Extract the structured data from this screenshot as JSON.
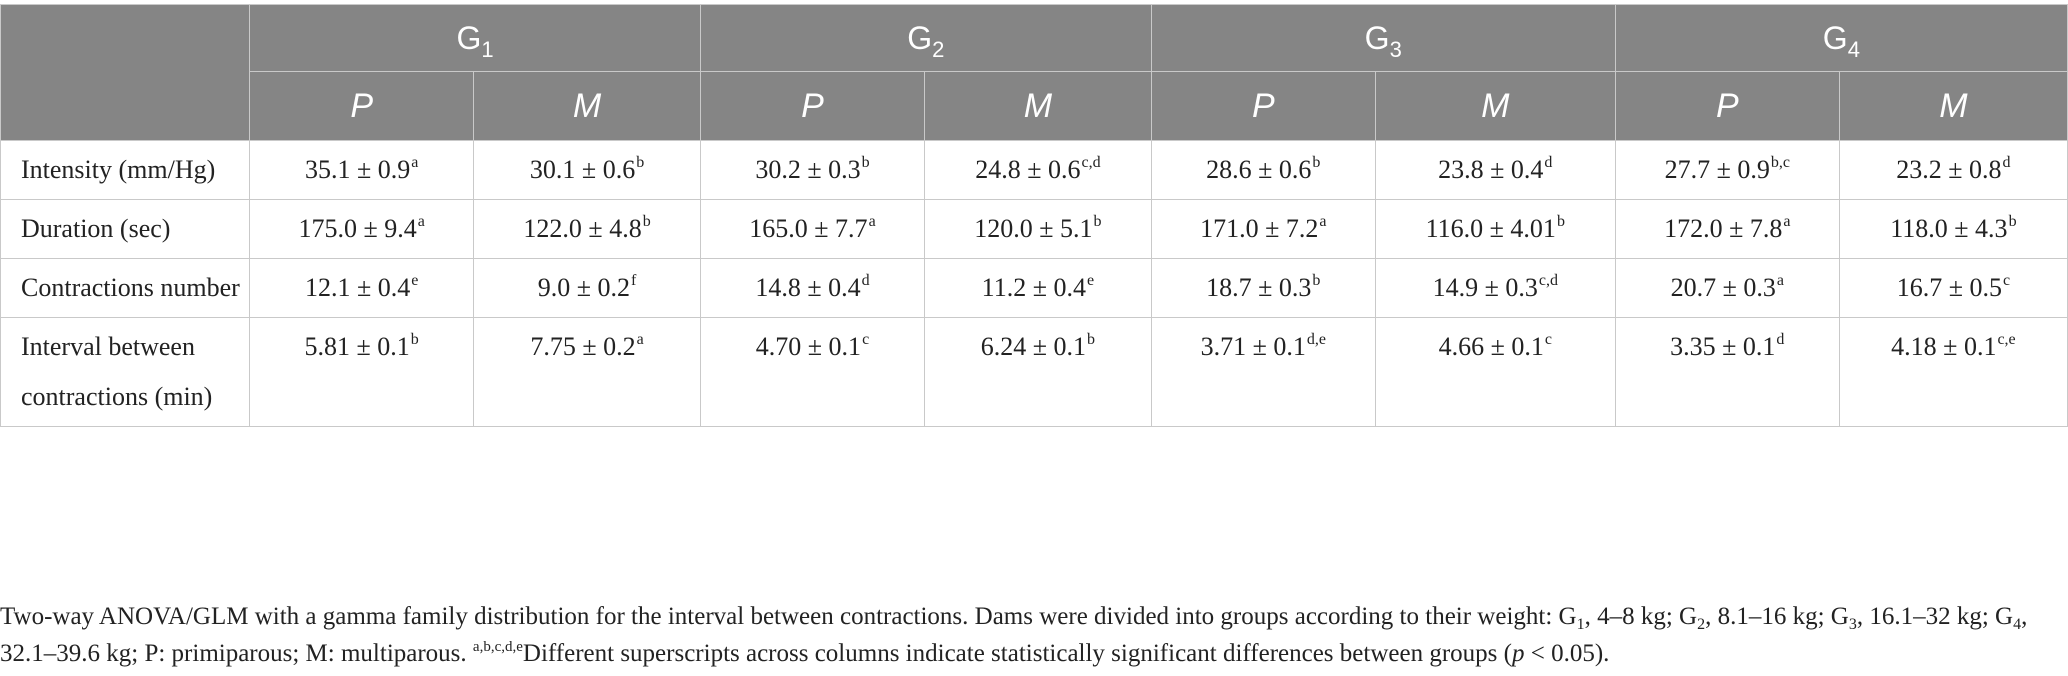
{
  "table": {
    "corner": "",
    "groups": [
      {
        "label": "G",
        "sub": "1"
      },
      {
        "label": "G",
        "sub": "2"
      },
      {
        "label": "G",
        "sub": "3"
      },
      {
        "label": "G",
        "sub": "4"
      }
    ],
    "subheaders": [
      "P",
      "M",
      "P",
      "M",
      "P",
      "M",
      "P",
      "M"
    ],
    "rows": [
      {
        "label": "Intensity (mm/Hg)",
        "cells": [
          {
            "value": "35.1 ± 0.9",
            "sup": "a"
          },
          {
            "value": "30.1 ± 0.6",
            "sup": "b"
          },
          {
            "value": "30.2 ± 0.3",
            "sup": "b"
          },
          {
            "value": "24.8 ± 0.6",
            "sup": "c,d"
          },
          {
            "value": "28.6 ± 0.6",
            "sup": "b"
          },
          {
            "value": "23.8 ± 0.4",
            "sup": "d"
          },
          {
            "value": "27.7 ± 0.9",
            "sup": "b,c"
          },
          {
            "value": "23.2 ± 0.8",
            "sup": "d"
          }
        ]
      },
      {
        "label": "Duration (sec)",
        "cells": [
          {
            "value": "175.0 ± 9.4",
            "sup": "a"
          },
          {
            "value": "122.0 ± 4.8",
            "sup": "b"
          },
          {
            "value": "165.0 ± 7.7",
            "sup": "a"
          },
          {
            "value": "120.0 ± 5.1",
            "sup": "b"
          },
          {
            "value": "171.0 ± 7.2",
            "sup": "a"
          },
          {
            "value": "116.0 ± 4.01",
            "sup": "b"
          },
          {
            "value": "172.0 ± 7.8",
            "sup": "a"
          },
          {
            "value": "118.0 ± 4.3",
            "sup": "b"
          }
        ]
      },
      {
        "label": "Contractions number",
        "cells": [
          {
            "value": "12.1 ± 0.4",
            "sup": "e"
          },
          {
            "value": "9.0 ± 0.2",
            "sup": "f"
          },
          {
            "value": "14.8 ± 0.4",
            "sup": "d"
          },
          {
            "value": "11.2 ± 0.4",
            "sup": "e"
          },
          {
            "value": "18.7 ± 0.3",
            "sup": "b"
          },
          {
            "value": "14.9 ± 0.3",
            "sup": "c,d"
          },
          {
            "value": "20.7 ± 0.3",
            "sup": "a"
          },
          {
            "value": "16.7 ± 0.5",
            "sup": "c"
          }
        ]
      },
      {
        "label": "Interval between contractions (min)",
        "cells": [
          {
            "value": "5.81 ± 0.1",
            "sup": "b"
          },
          {
            "value": "7.75 ± 0.2",
            "sup": "a"
          },
          {
            "value": "4.70 ± 0.1",
            "sup": "c"
          },
          {
            "value": "6.24 ± 0.1",
            "sup": "b"
          },
          {
            "value": "3.71 ± 0.1",
            "sup": "d,e"
          },
          {
            "value": "4.66 ± 0.1",
            "sup": "c"
          },
          {
            "value": "3.35 ± 0.1",
            "sup": "d"
          },
          {
            "value": "4.18 ± 0.1",
            "sup": "c,e"
          }
        ]
      }
    ]
  },
  "footnote": {
    "t1": "Two-way ANOVA/GLM with a gamma family distribution for the interval between contractions. Dams were divided into groups according to their weight: G",
    "s1": "1",
    "t2": ", 4–8 kg; G",
    "s2": "2",
    "t3": ", 8.1–16 kg; G",
    "s3": "3",
    "t4": ", 16.1–32 kg; G",
    "s4": "4",
    "t5": ", 32.1–39.6 kg; P: primiparous; M: multiparous. ",
    "sup_letters": "a,b,c,d,e",
    "t6": "Different superscripts across columns indicate statistically significant differences between groups (",
    "p_italic": "p",
    "t7": " < 0.05)."
  }
}
